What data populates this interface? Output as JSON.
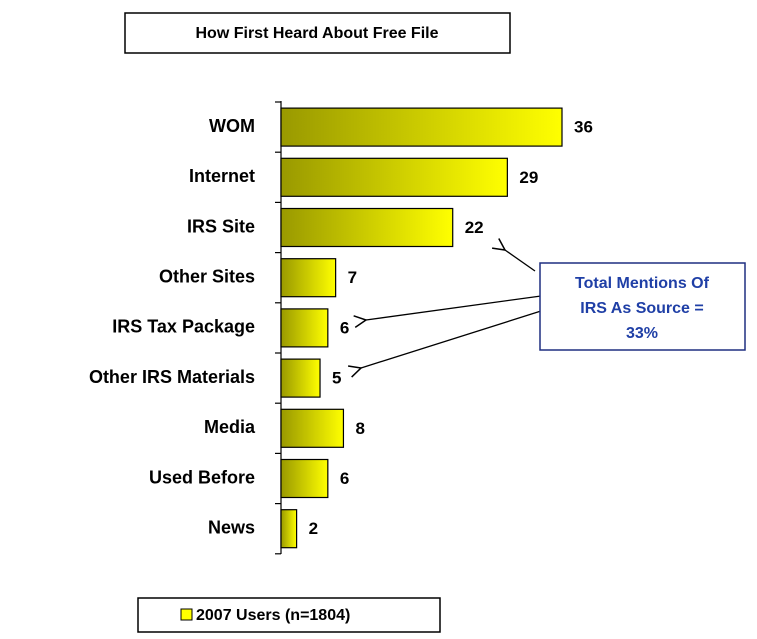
{
  "chart_data": {
    "type": "hbar",
    "title": "How First Heard About Free File",
    "categories": [
      "WOM",
      "Internet",
      "IRS Site",
      "Other Sites",
      "IRS Tax Package",
      "Other IRS Materials",
      "Media",
      "Used Before",
      "News"
    ],
    "series": [
      {
        "name": "2007 Users (n=1804)",
        "color": "#ffff00",
        "values": [
          36,
          29,
          22,
          7,
          6,
          5,
          8,
          6,
          2
        ]
      }
    ],
    "annotation": [
      "Total Mentions Of",
      "IRS As Source =",
      "33%"
    ]
  }
}
